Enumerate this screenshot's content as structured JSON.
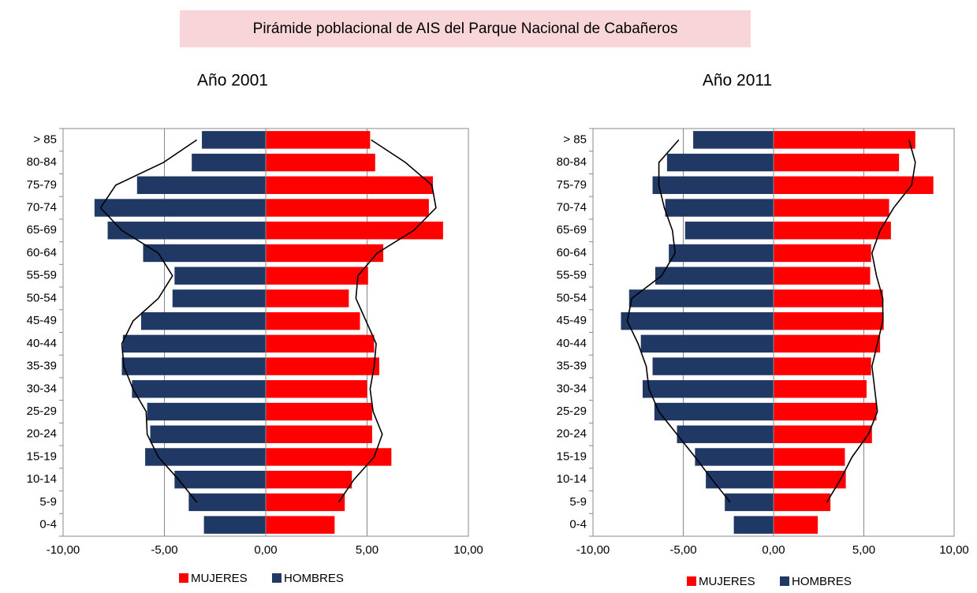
{
  "title": "Pirámide poblacional de AIS del Parque Nacional de Cabañeros",
  "chart_data": [
    {
      "type": "pyramid",
      "title": "Año 2001",
      "categories": [
        "> 85",
        "80-84",
        "75-79",
        "70-74",
        "65-69",
        "60-64",
        "55-59",
        "50-54",
        "45-49",
        "40-44",
        "35-39",
        "30-34",
        "25-29",
        "20-24",
        "15-19",
        "10-14",
        "5-9",
        "0-4"
      ],
      "series": [
        {
          "name": "MUJERES",
          "color": "#ff0000",
          "values": [
            5.15,
            5.4,
            8.25,
            8.05,
            8.75,
            5.8,
            5.05,
            4.1,
            4.65,
            5.35,
            5.6,
            5.0,
            5.25,
            5.25,
            6.2,
            4.25,
            3.9,
            3.4
          ]
        },
        {
          "name": "HOMBRES",
          "color": "#1f3864",
          "values": [
            -3.15,
            -3.65,
            -6.35,
            -8.45,
            -7.8,
            -6.05,
            -4.5,
            -4.6,
            -6.15,
            -7.05,
            -7.1,
            -6.6,
            -5.85,
            -5.7,
            -5.95,
            -4.5,
            -3.8,
            -3.05
          ]
        },
        {
          "type": "line",
          "color": "#000000",
          "values": [
            5.2,
            6.9,
            8.2,
            8.4,
            7.3,
            5.5,
            4.55,
            4.45,
            4.95,
            5.45,
            5.35,
            5.15,
            5.3,
            5.75,
            5.35,
            4.35,
            3.6,
            null
          ]
        },
        {
          "type": "line",
          "color": "#000000",
          "values": [
            -3.4,
            -5.05,
            -7.4,
            -8.15,
            -7.1,
            -5.3,
            -4.6,
            -5.3,
            -6.55,
            -7.1,
            -7.0,
            -6.55,
            -5.9,
            -5.85,
            -5.3,
            -4.3,
            -3.4,
            null
          ]
        }
      ],
      "xlim": [
        -10,
        10
      ],
      "xticks": [
        {
          "value": -10,
          "label": "-10,00"
        },
        {
          "value": -5,
          "label": "-5,00"
        },
        {
          "value": 0,
          "label": "0,00"
        },
        {
          "value": 5,
          "label": "5,00"
        },
        {
          "value": 10,
          "label": "10,00"
        }
      ],
      "grid": true,
      "legend": "bottom"
    },
    {
      "type": "pyramid",
      "title": "Año 2011",
      "categories": [
        "> 85",
        "80-84",
        "75-79",
        "70-74",
        "65-69",
        "60-64",
        "55-59",
        "50-54",
        "45-49",
        "40-44",
        "35-39",
        "30-34",
        "25-29",
        "20-24",
        "15-19",
        "10-14",
        "5-9",
        "0-4"
      ],
      "series": [
        {
          "name": "MUJERES",
          "color": "#ff0000",
          "values": [
            7.85,
            6.95,
            8.85,
            6.4,
            6.5,
            5.4,
            5.35,
            6.05,
            6.1,
            5.9,
            5.4,
            5.15,
            5.7,
            5.45,
            3.95,
            4.0,
            3.15,
            2.45
          ]
        },
        {
          "name": "HOMBRES",
          "color": "#1f3864",
          "values": [
            -4.45,
            -5.9,
            -6.7,
            -6.0,
            -4.9,
            -5.8,
            -6.55,
            -8.0,
            -8.45,
            -7.35,
            -6.7,
            -7.25,
            -6.6,
            -5.35,
            -4.35,
            -3.75,
            -2.7,
            -2.2
          ]
        },
        {
          "type": "line",
          "color": "#000000",
          "values": [
            7.5,
            7.85,
            7.65,
            6.65,
            5.9,
            5.45,
            5.7,
            6.05,
            6.05,
            5.75,
            5.45,
            5.6,
            5.75,
            5.25,
            4.35,
            3.7,
            2.95,
            null
          ]
        },
        {
          "type": "line",
          "color": "#000000",
          "values": [
            -5.25,
            -6.35,
            -6.35,
            -6.05,
            -5.6,
            -5.45,
            -6.2,
            -7.85,
            -8.1,
            -7.5,
            -7.05,
            -6.9,
            -6.35,
            -5.35,
            -4.35,
            -3.4,
            -2.4,
            null
          ]
        }
      ],
      "xlim": [
        -10,
        10
      ],
      "xticks": [
        {
          "value": -10,
          "label": "-10,00"
        },
        {
          "value": -5,
          "label": "-5,00"
        },
        {
          "value": 0,
          "label": "0,00"
        },
        {
          "value": 5,
          "label": "5,00"
        },
        {
          "value": 10,
          "label": "10,00"
        }
      ],
      "grid": true,
      "legend": "bottom"
    }
  ]
}
